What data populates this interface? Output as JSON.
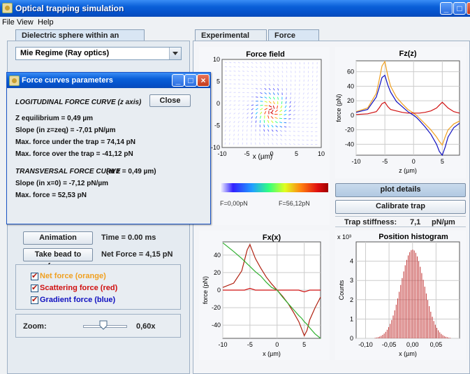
{
  "window": {
    "title": "Optical trapping simulation"
  },
  "menu": [
    "File",
    "View",
    "Help"
  ],
  "left_tab": "Dielectric sphere within an Optical Trap",
  "right_tabs": [
    "Experimental settings",
    "Force analysis"
  ],
  "regime": "Mie Regime (Ray optics)",
  "dialog": {
    "title": "Force curves parameters",
    "longitudinal_header": "LOGITUDINAL FORCE CURVE (z axis)",
    "close_label": "Close",
    "lines": [
      "Z equilibrium = 0,49 µm",
      "Slope (in z=zeq) = -7,01 pN/µm",
      "Max. force under the trap = 74,14   pN",
      "Max. force over the trap = -41,12 pN"
    ],
    "transversal_header": "TRANSVERSAL FORCE CURVE",
    "transversal_suffix": "(at z = 0,49 µm)",
    "tlines": [
      "Slope (in x=0) = -7,12  pN/µm",
      "Max. force = 52,53 pN"
    ]
  },
  "controls": {
    "animation_label": "Animation",
    "time_text": "Time = 0.00 ms",
    "focus_label": "Take bead to focus",
    "net_force_text": "Net Force = 4,15 pN",
    "checks": [
      {
        "label": "Net force (orange)",
        "color": "#f0a020"
      },
      {
        "label": "Scattering force (red)",
        "color": "#d01010"
      },
      {
        "label": "Gradient force (blue)",
        "color": "#1010c0"
      }
    ],
    "zoom_label": "Zoom:",
    "zoom_value": "0,60x",
    "zoom_level": 0.45
  },
  "buttons": {
    "plot_details": "plot details",
    "calibrate": "Calibrate trap"
  },
  "stiffness": {
    "label": "Trap stiffness:",
    "value": "7,1",
    "unit": "pN/µm"
  },
  "colorbar": {
    "min_label": "F=0,00pN",
    "max_label": "F=56,12pN"
  },
  "chart_data": [
    {
      "type": "heatmap",
      "title": "Force field",
      "xlabel": "x (µm)",
      "ylabel": "",
      "xticks": [
        "-10",
        "-5",
        "0",
        "5",
        "10"
      ],
      "yticks": [
        "10",
        "5",
        "0",
        "-5",
        "-10"
      ],
      "xlim": [
        -10,
        10
      ],
      "ylim": [
        -10,
        10
      ]
    },
    {
      "type": "line",
      "title": "Fz(z)",
      "xlabel": "z (µm)",
      "ylabel": "force (pN)",
      "xticks": [
        "-10",
        "-5",
        "0",
        "5"
      ],
      "yticks": [
        "60",
        "40",
        "20",
        "0",
        "-20",
        "-40"
      ],
      "xlim": [
        -10,
        8
      ],
      "ylim": [
        -55,
        75
      ],
      "x": [
        -10,
        -8,
        -6.5,
        -6,
        -5.5,
        -5,
        -4.5,
        -4,
        -3,
        -2,
        -1,
        0,
        0.49,
        1,
        2,
        3,
        4,
        4.5,
        5,
        5.5,
        6,
        7,
        8
      ],
      "series": [
        {
          "color": "#f0a020",
          "values": [
            5,
            10,
            30,
            48,
            68,
            74,
            55,
            40,
            25,
            16,
            8,
            3,
            0,
            -4,
            -12,
            -20,
            -30,
            -36,
            -41,
            -30,
            -20,
            -12,
            -8
          ]
        },
        {
          "color": "#d01010",
          "values": [
            1,
            2,
            5,
            10,
            16,
            18,
            12,
            8,
            6,
            4,
            3,
            3,
            3,
            3,
            4,
            6,
            10,
            14,
            18,
            14,
            10,
            5,
            3
          ]
        },
        {
          "color": "#1010c0",
          "values": [
            4,
            8,
            25,
            38,
            52,
            55,
            42,
            32,
            19,
            12,
            5,
            0,
            -3,
            -7,
            -16,
            -26,
            -40,
            -50,
            -59,
            -44,
            -30,
            -17,
            -11
          ]
        }
      ]
    },
    {
      "type": "line",
      "title": "Fx(x)",
      "xlabel": "x (µm)",
      "ylabel": "force (pN)",
      "xticks": [
        "-10",
        "-5",
        "0",
        "5"
      ],
      "yticks": [
        "40",
        "20",
        "0",
        "-20",
        "-40"
      ],
      "xlim": [
        -10,
        8
      ],
      "ylim": [
        -55,
        55
      ],
      "x": [
        -10,
        -8,
        -6.5,
        -6,
        -5.5,
        -5,
        -4.5,
        -4,
        -3,
        -2,
        -1,
        0,
        1,
        2,
        3,
        4,
        4.5,
        5,
        5.5,
        6,
        7,
        8
      ],
      "series": [
        {
          "name": "",
          "color": "#b02010",
          "values": [
            3,
            8,
            22,
            34,
            46,
            52,
            44,
            36,
            25,
            15,
            7,
            0,
            -7,
            -15,
            -25,
            -36,
            -44,
            -52,
            -46,
            -34,
            -20,
            -8
          ]
        },
        {
          "name": "",
          "color": "#d01010",
          "values": [
            0,
            0,
            0,
            0,
            1,
            2,
            1,
            0,
            0,
            0,
            0,
            0,
            0,
            0,
            0,
            0,
            -1,
            -2,
            -1,
            0,
            0,
            0
          ]
        },
        {
          "name": "",
          "color": "#30b030",
          "values": [
            54,
            44,
            36,
            33,
            30,
            27,
            24,
            21,
            16,
            9,
            3,
            0,
            -8,
            -15,
            -22,
            -29,
            -32,
            -36,
            -39,
            -43,
            -50,
            -55
          ]
        }
      ]
    },
    {
      "type": "bar",
      "title": "Position histogram",
      "xlabel": "x (µm)",
      "ylabel": "Counts",
      "y_multiplier": "x 10³",
      "xticks": [
        "-0,10",
        "-0,05",
        "0,00",
        "0,05"
      ],
      "yticks": [
        "4",
        "3",
        "2",
        "1",
        "0"
      ],
      "xlim": [
        -0.12,
        0.1
      ],
      "ylim": [
        0,
        5
      ],
      "mean": 0.0,
      "sd": 0.025,
      "peak": 4.6
    }
  ]
}
